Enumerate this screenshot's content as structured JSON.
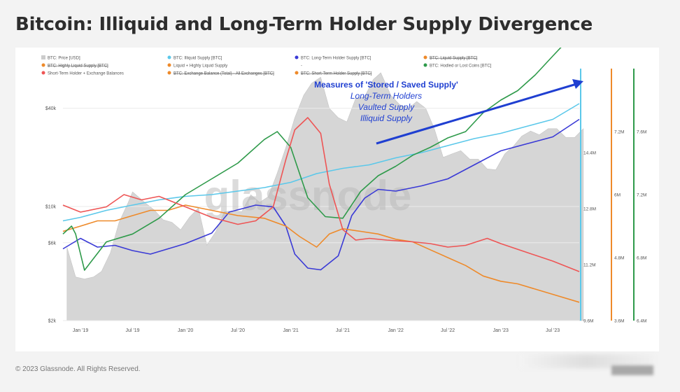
{
  "title": "Bitcoin: Illiquid and Long-Term Holder Supply Divergence",
  "copyright": "© 2023 Glassnode. All Rights Reserved.",
  "watermark": "glassnode",
  "annotation": {
    "heading": "Measures of 'Stored / Saved Supply'",
    "lines": [
      "Long-Term Holders",
      "Vaulted Supply",
      "Illiquid Supply"
    ],
    "color": "#1f3fd1"
  },
  "legend": [
    {
      "label": "BTC: Price [USD]",
      "color": "#cccccc",
      "struck": false,
      "marker": "square"
    },
    {
      "label": "BTC: Illiquid Supply [BTC]",
      "color": "#5bc8ea",
      "struck": false,
      "marker": "dot"
    },
    {
      "label": "BTC: Long-Term Holder Supply [BTC]",
      "color": "#3a3ad6",
      "struck": false,
      "marker": "dot"
    },
    {
      "label": "BTC: Liquid Supply [BTC]",
      "color": "#ee8a2a",
      "struck": true,
      "marker": "dot"
    },
    {
      "label": "BTC: Highly Liquid Supply [BTC]",
      "color": "#ee8a2a",
      "struck": true,
      "marker": "dot"
    },
    {
      "label": "Liquid + Highly Liquid Supply",
      "color": "#ee8a2a",
      "struck": false,
      "marker": "dot"
    },
    {
      "label": "-",
      "color": "#888888",
      "struck": false,
      "marker": "none"
    },
    {
      "label": "BTC: Hodled or Lost Coins [BTC]",
      "color": "#2e9a4a",
      "struck": false,
      "marker": "dot"
    },
    {
      "label": "Short-Term Holder + Exchange Balances",
      "color": "#ee5555",
      "struck": false,
      "marker": "dot"
    },
    {
      "label": "BTC: Exchange Balance (Total) - All Exchanges [BTC]",
      "color": "#ee8a2a",
      "struck": true,
      "marker": "dot"
    },
    {
      "label": "BTC: Short-Term Holder Supply [BTC]",
      "color": "#ee8a2a",
      "struck": true,
      "marker": "dot"
    }
  ],
  "chart_data": {
    "type": "line",
    "x_ticks": [
      "Jan '19",
      "Jul '19",
      "Jan '20",
      "Jul '20",
      "Jan '21",
      "Jul '21",
      "Jan '22",
      "Jul '22",
      "Jan '23",
      "Jul '23"
    ],
    "x_range": [
      "2018-11",
      "2023-10"
    ],
    "price_axis": {
      "scale": "log",
      "ticks": [
        "$2k",
        "$6k",
        "$10k",
        "$40k"
      ],
      "range": [
        2000,
        70000
      ]
    },
    "right_axes": [
      {
        "color": "#5bc8ea",
        "ticks": [
          "9.6M",
          "11.2M",
          "12.8M",
          "14.4M"
        ],
        "range": [
          9600000,
          16800000
        ]
      },
      {
        "color": "#ee8a2a",
        "ticks": [
          "3.6M",
          "4.8M",
          "6M",
          "7.2M"
        ],
        "range": [
          3600000,
          8400000
        ]
      },
      {
        "color": "#2e9a4a",
        "ticks": [
          "6.4M",
          "6.8M",
          "7.2M",
          "7.6M"
        ],
        "range": [
          6400000,
          8000000
        ]
      }
    ],
    "series": [
      {
        "name": "BTC: Price [USD]",
        "color": "#d6d6d6",
        "axis": "price",
        "style": "area",
        "x": [
          "2018-11-15",
          "2018-12-15",
          "2019-01-15",
          "2019-02-15",
          "2019-03-15",
          "2019-04-15",
          "2019-05-15",
          "2019-06-15",
          "2019-07-01",
          "2019-08-15",
          "2019-09-15",
          "2019-10-15",
          "2019-11-15",
          "2019-12-15",
          "2020-01-15",
          "2020-02-15",
          "2020-03-15",
          "2020-04-15",
          "2020-05-15",
          "2020-06-15",
          "2020-07-15",
          "2020-08-15",
          "2020-09-15",
          "2020-10-15",
          "2020-11-15",
          "2020-12-15",
          "2021-01-15",
          "2021-02-15",
          "2021-03-15",
          "2021-04-15",
          "2021-05-15",
          "2021-06-15",
          "2021-07-15",
          "2021-08-15",
          "2021-09-15",
          "2021-10-15",
          "2021-11-10",
          "2021-12-15",
          "2022-01-15",
          "2022-02-15",
          "2022-03-15",
          "2022-04-15",
          "2022-05-15",
          "2022-06-15",
          "2022-07-15",
          "2022-08-15",
          "2022-09-15",
          "2022-10-15",
          "2022-11-15",
          "2022-12-15",
          "2023-01-15",
          "2023-02-15",
          "2023-03-15",
          "2023-04-15",
          "2023-05-15",
          "2023-06-15",
          "2023-07-15",
          "2023-08-15",
          "2023-09-15",
          "2023-10-15"
        ],
        "values": [
          5600,
          3700,
          3600,
          3700,
          4000,
          5200,
          8000,
          10500,
          12300,
          10500,
          9500,
          8300,
          8000,
          7200,
          8600,
          9800,
          5800,
          7000,
          9300,
          9400,
          9300,
          11800,
          10600,
          11500,
          16000,
          23000,
          35000,
          48000,
          57000,
          62000,
          40000,
          35000,
          33000,
          46000,
          47000,
          60000,
          66000,
          48000,
          42000,
          40000,
          44000,
          40000,
          30000,
          20000,
          21000,
          22000,
          19500,
          19500,
          17000,
          16800,
          21000,
          23500,
          27000,
          29000,
          27500,
          30000,
          30000,
          26500,
          26500,
          30000
        ]
      },
      {
        "name": "BTC: Illiquid Supply [BTC]",
        "color": "#5bc8ea",
        "axis": "right0",
        "x": [
          "2018-11-01",
          "2019-01-01",
          "2019-04-01",
          "2019-07-01",
          "2019-10-01",
          "2020-01-01",
          "2020-04-01",
          "2020-07-01",
          "2020-10-01",
          "2021-01-01",
          "2021-04-01",
          "2021-07-01",
          "2021-10-01",
          "2022-01-01",
          "2022-04-01",
          "2022-07-01",
          "2022-10-01",
          "2023-01-01",
          "2023-04-01",
          "2023-07-01",
          "2023-10-01"
        ],
        "values": [
          12450000,
          12550000,
          12750000,
          12900000,
          13050000,
          13150000,
          13200000,
          13300000,
          13400000,
          13550000,
          13800000,
          13950000,
          14050000,
          14250000,
          14400000,
          14600000,
          14800000,
          14950000,
          15150000,
          15350000,
          15800000
        ]
      },
      {
        "name": "BTC: Long-Term Holder Supply [BTC]",
        "color": "#3a3ad6",
        "axis": "right0",
        "x": [
          "2018-11-01",
          "2019-01-01",
          "2019-03-01",
          "2019-05-01",
          "2019-07-01",
          "2019-09-01",
          "2019-11-01",
          "2020-01-01",
          "2020-04-01",
          "2020-06-01",
          "2020-09-01",
          "2020-11-01",
          "2020-12-15",
          "2021-01-15",
          "2021-03-01",
          "2021-04-15",
          "2021-06-15",
          "2021-08-01",
          "2021-09-15",
          "2021-11-01",
          "2022-01-01",
          "2022-04-01",
          "2022-07-01",
          "2022-10-01",
          "2023-01-01",
          "2023-04-01",
          "2023-07-01",
          "2023-10-01"
        ],
        "values": [
          11650000,
          11950000,
          11700000,
          11750000,
          11600000,
          11500000,
          11650000,
          11800000,
          12100000,
          12700000,
          12900000,
          12850000,
          12300000,
          11500000,
          11100000,
          11050000,
          11450000,
          12600000,
          13100000,
          13350000,
          13300000,
          13450000,
          13650000,
          14050000,
          14450000,
          14650000,
          14850000,
          15350000
        ]
      },
      {
        "name": "Liquid + Highly Liquid Supply",
        "color": "#ee8a2a",
        "axis": "right1",
        "x": [
          "2018-11-01",
          "2019-01-01",
          "2019-03-01",
          "2019-05-01",
          "2019-07-01",
          "2019-09-01",
          "2019-11-01",
          "2020-01-01",
          "2020-04-01",
          "2020-07-01",
          "2020-10-01",
          "2020-12-15",
          "2021-02-01",
          "2021-04-01",
          "2021-05-15",
          "2021-07-01",
          "2021-09-01",
          "2021-11-01",
          "2022-01-01",
          "2022-03-01",
          "2022-05-01",
          "2022-07-01",
          "2022-09-01",
          "2022-11-01",
          "2023-01-01",
          "2023-03-01",
          "2023-05-01",
          "2023-07-01",
          "2023-10-01"
        ],
        "values": [
          5300000,
          5400000,
          5500000,
          5500000,
          5600000,
          5700000,
          5700000,
          5800000,
          5700000,
          5600000,
          5550000,
          5400000,
          5200000,
          5000000,
          5250000,
          5350000,
          5300000,
          5250000,
          5150000,
          5100000,
          4950000,
          4800000,
          4650000,
          4450000,
          4350000,
          4300000,
          4200000,
          4100000,
          3950000
        ]
      },
      {
        "name": "BTC: Hodled or Lost Coins [BTC]",
        "color": "#2e9a4a",
        "axis": "right2",
        "x": [
          "2018-11-01",
          "2018-12-01",
          "2018-12-15",
          "2019-01-15",
          "2019-04-01",
          "2019-07-01",
          "2019-10-01",
          "2020-01-01",
          "2020-04-01",
          "2020-07-01",
          "2020-10-01",
          "2020-11-15",
          "2021-01-01",
          "2021-03-01",
          "2021-05-01",
          "2021-07-01",
          "2021-09-01",
          "2021-11-01",
          "2022-01-01",
          "2022-03-01",
          "2022-05-01",
          "2022-07-01",
          "2022-09-01",
          "2022-11-01",
          "2023-01-01",
          "2023-03-01",
          "2023-05-01",
          "2023-07-01",
          "2023-09-01",
          "2023-10-01"
        ],
        "values": [
          6950000,
          7000000,
          6950000,
          6720000,
          6900000,
          6950000,
          7050000,
          7200000,
          7300000,
          7400000,
          7550000,
          7600000,
          7500000,
          7180000,
          7060000,
          7050000,
          7220000,
          7320000,
          7380000,
          7450000,
          7500000,
          7560000,
          7600000,
          7720000,
          7800000,
          7860000,
          7960000,
          8080000,
          8200000,
          8280000
        ]
      },
      {
        "name": "Short-Term Holder + Exchange Balances",
        "color": "#ee5555",
        "axis": "right0",
        "x": [
          "2018-11-01",
          "2019-01-01",
          "2019-04-01",
          "2019-06-01",
          "2019-08-01",
          "2019-10-01",
          "2020-01-01",
          "2020-04-01",
          "2020-07-01",
          "2020-09-01",
          "2020-11-01",
          "2020-12-15",
          "2021-01-15",
          "2021-03-01",
          "2021-04-15",
          "2021-05-15",
          "2021-07-01",
          "2021-08-15",
          "2021-10-01",
          "2021-12-01",
          "2022-03-01",
          "2022-05-01",
          "2022-07-01",
          "2022-09-01",
          "2022-11-15",
          "2023-01-01",
          "2023-04-01",
          "2023-07-01",
          "2023-10-01"
        ],
        "values": [
          12900000,
          12700000,
          12850000,
          13200000,
          13050000,
          13150000,
          12850000,
          12550000,
          12350000,
          12450000,
          12850000,
          14200000,
          15050000,
          15400000,
          14950000,
          13500000,
          12200000,
          11900000,
          11950000,
          11900000,
          11850000,
          11800000,
          11700000,
          11750000,
          11950000,
          11800000,
          11550000,
          11300000,
          11000000
        ]
      }
    ]
  }
}
